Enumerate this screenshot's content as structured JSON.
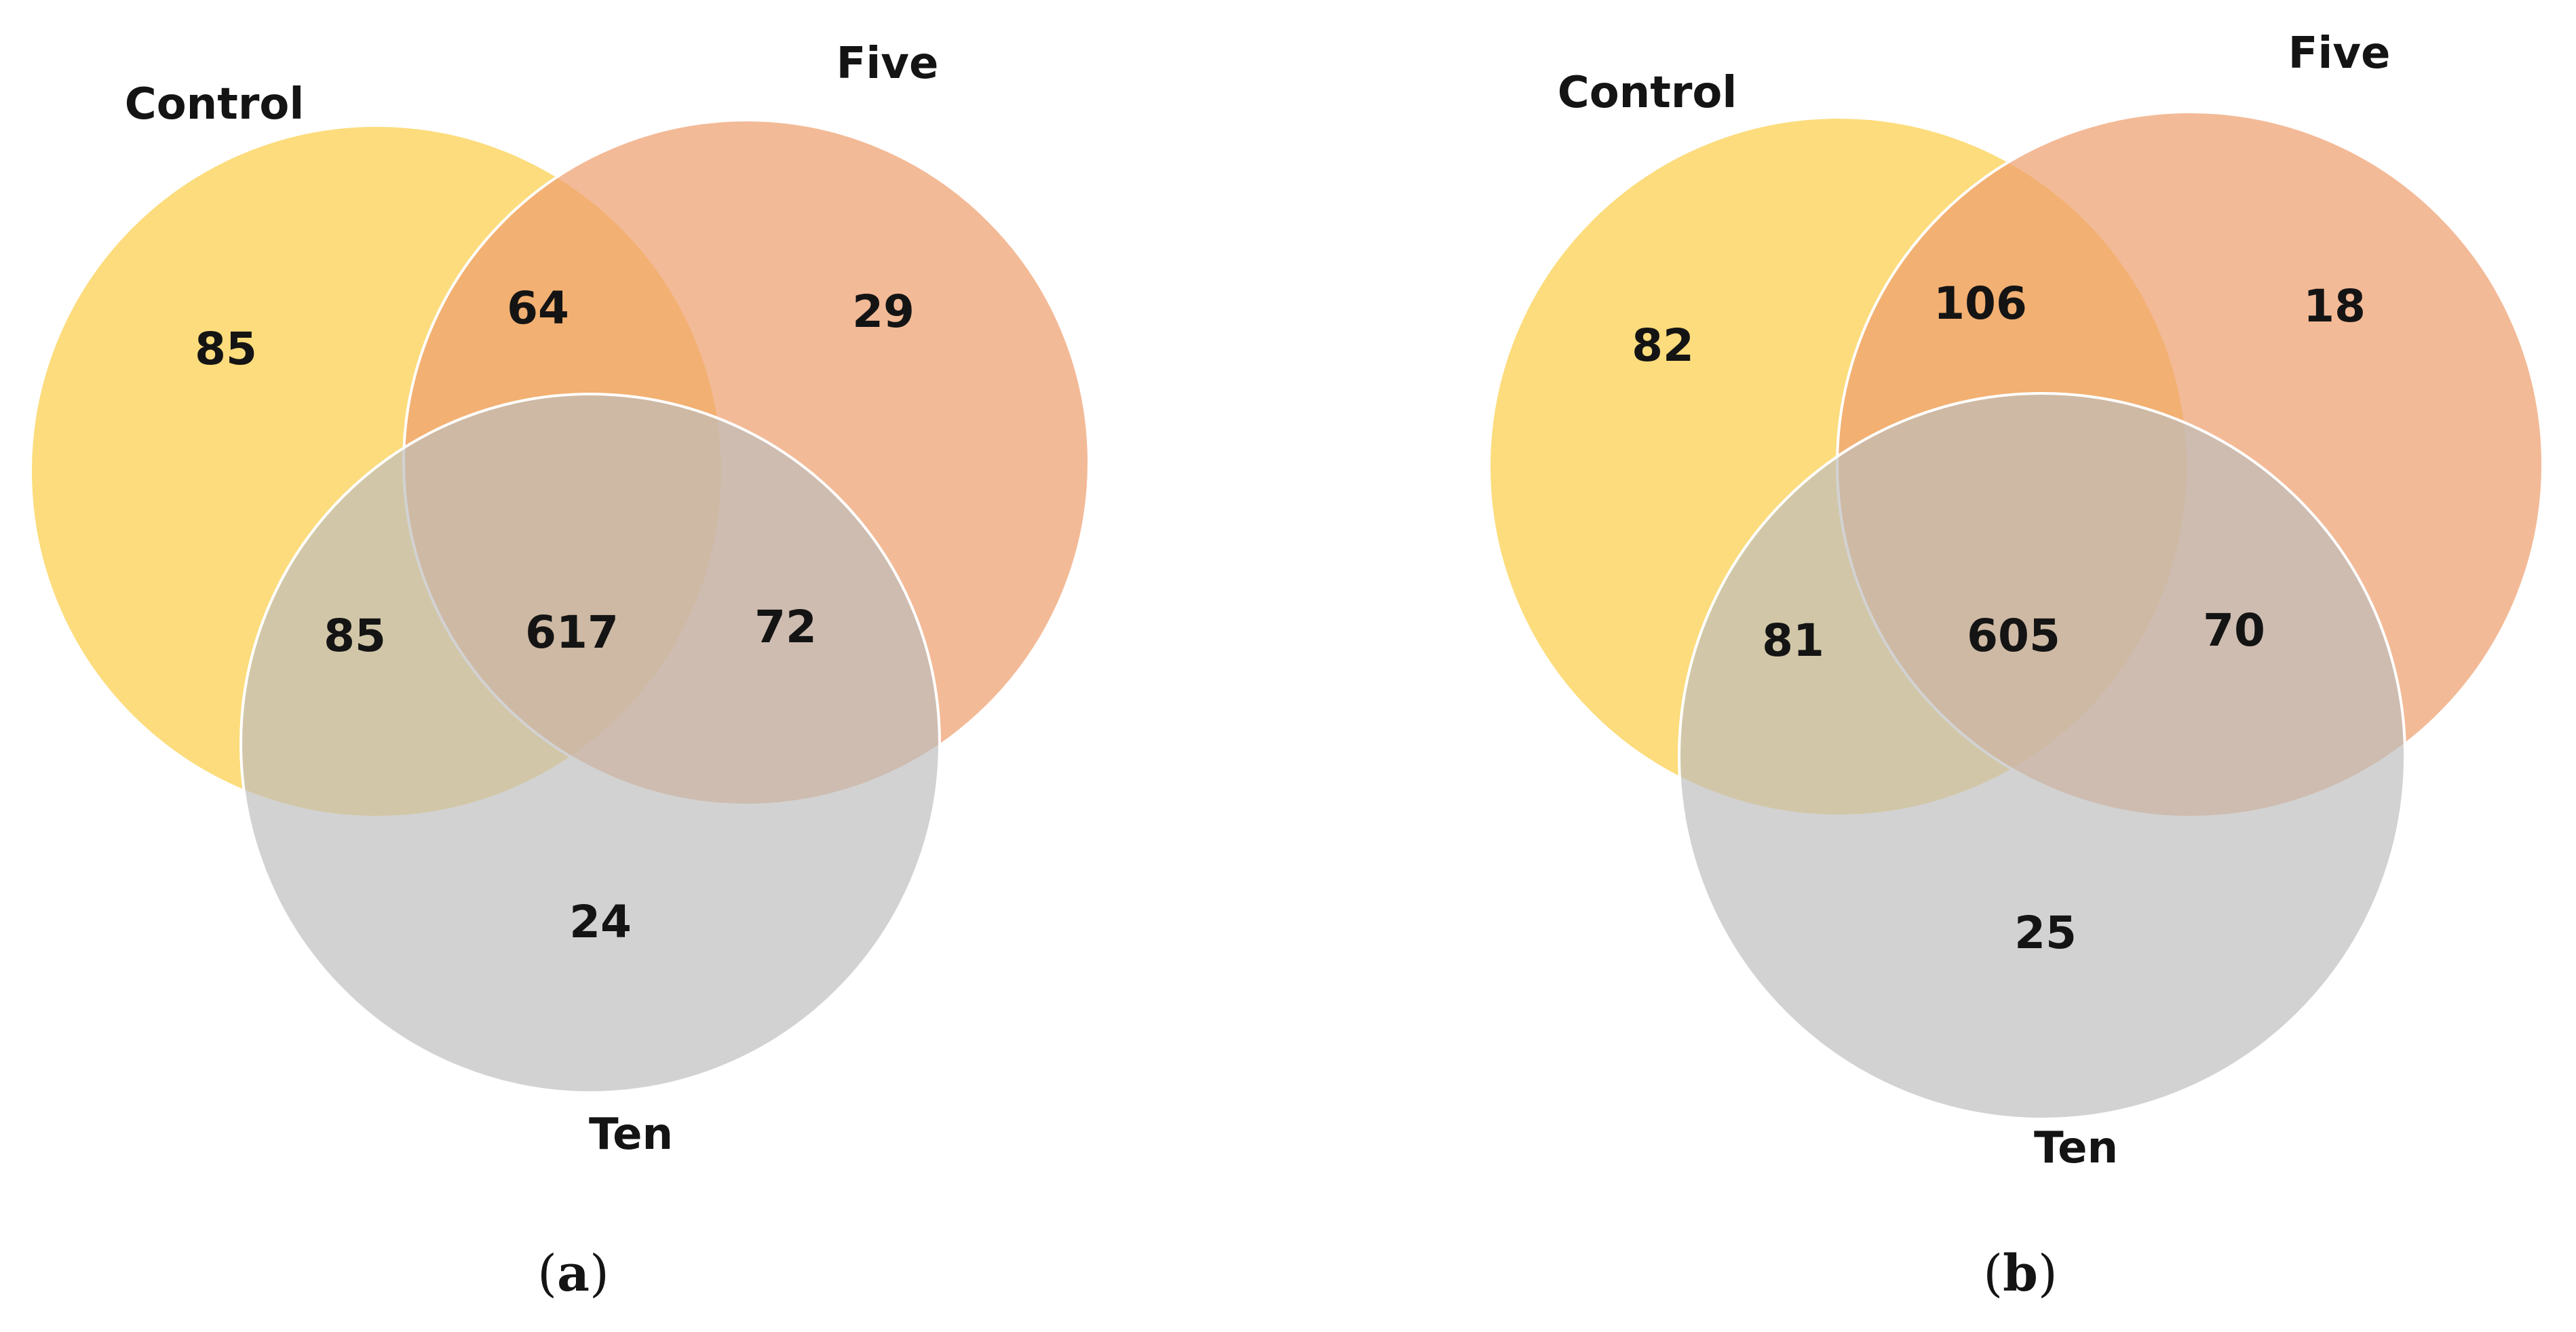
{
  "colors": {
    "control": "#FBCF4A",
    "five": "#EF9F6F",
    "ten": "#BDBDBD",
    "outline": "#FFFFFF",
    "text": "#141414"
  },
  "panels": [
    {
      "caption": {
        "open": "(",
        "letter": "a",
        "close": ")"
      },
      "sets": {
        "control": "Control",
        "five": "Five",
        "ten": "Ten"
      },
      "counts": {
        "control_only": "85",
        "five_only": "29",
        "ten_only": "24",
        "control_five": "64",
        "control_ten": "85",
        "five_ten": "72",
        "all_three": "617"
      }
    },
    {
      "caption": {
        "open": "(",
        "letter": "b",
        "close": ")"
      },
      "sets": {
        "control": "Control",
        "five": "Five",
        "ten": "Ten"
      },
      "counts": {
        "control_only": "82",
        "five_only": "18",
        "ten_only": "25",
        "control_five": "106",
        "control_ten": "81",
        "five_ten": "70",
        "all_three": "605"
      }
    }
  ]
}
